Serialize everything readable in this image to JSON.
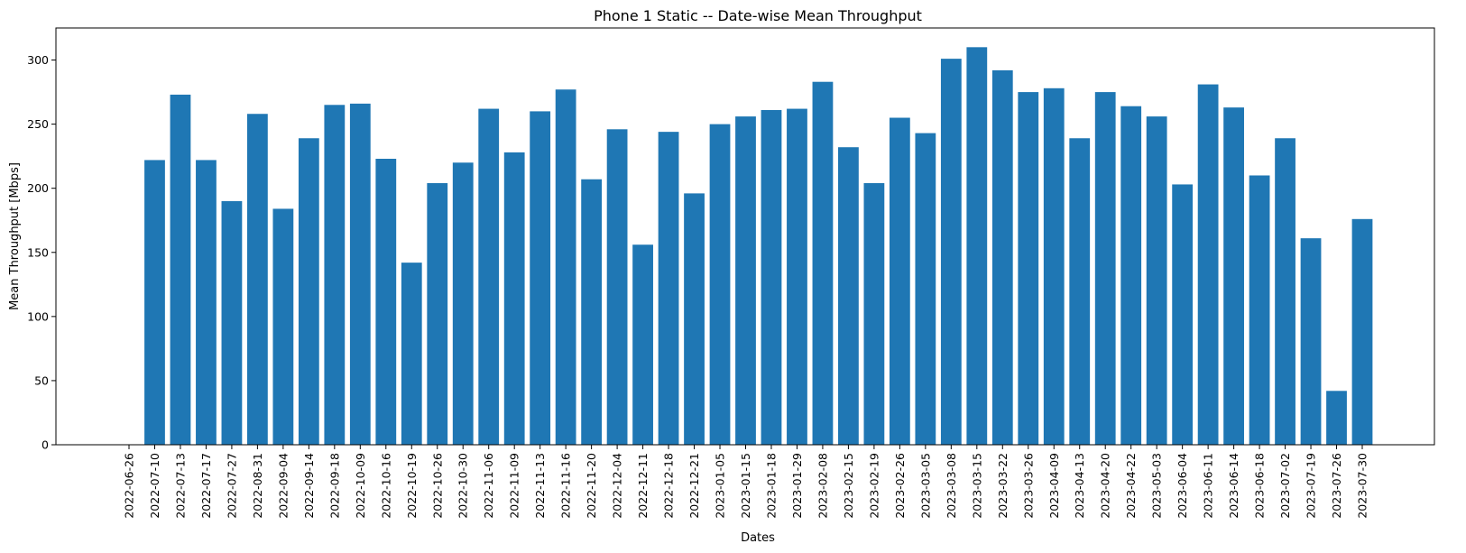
{
  "chart_data": {
    "type": "bar",
    "title": "Phone 1 Static -- Date-wise Mean Throughput",
    "xlabel": "Dates",
    "ylabel": "Mean Throughput [Mbps]",
    "ylim": [
      0,
      325
    ],
    "yticks": [
      0,
      50,
      100,
      150,
      200,
      250,
      300
    ],
    "grid": false,
    "bar_color": "#1f77b4",
    "categories": [
      "2022-06-26",
      "2022-07-10",
      "2022-07-13",
      "2022-07-17",
      "2022-07-27",
      "2022-08-31",
      "2022-09-04",
      "2022-09-14",
      "2022-09-18",
      "2022-10-09",
      "2022-10-16",
      "2022-10-19",
      "2022-10-26",
      "2022-10-30",
      "2022-11-06",
      "2022-11-09",
      "2022-11-13",
      "2022-11-16",
      "2022-11-20",
      "2022-12-04",
      "2022-12-11",
      "2022-12-18",
      "2022-12-21",
      "2023-01-05",
      "2023-01-15",
      "2023-01-18",
      "2023-01-29",
      "2023-02-08",
      "2023-02-15",
      "2023-02-19",
      "2023-02-26",
      "2023-03-05",
      "2023-03-08",
      "2023-03-15",
      "2023-03-22",
      "2023-03-26",
      "2023-04-09",
      "2023-04-13",
      "2023-04-20",
      "2023-04-22",
      "2023-05-03",
      "2023-06-04",
      "2023-06-11",
      "2023-06-14",
      "2023-06-18",
      "2023-07-02",
      "2023-07-19",
      "2023-07-26",
      "2023-07-30"
    ],
    "values": [
      0,
      222,
      273,
      222,
      190,
      258,
      184,
      239,
      265,
      266,
      223,
      142,
      204,
      220,
      262,
      228,
      260,
      277,
      207,
      246,
      156,
      244,
      196,
      250,
      256,
      261,
      262,
      283,
      232,
      204,
      255,
      243,
      301,
      310,
      292,
      275,
      278,
      239,
      275,
      264,
      256,
      203,
      281,
      263,
      210,
      239,
      161,
      42,
      176
    ]
  }
}
